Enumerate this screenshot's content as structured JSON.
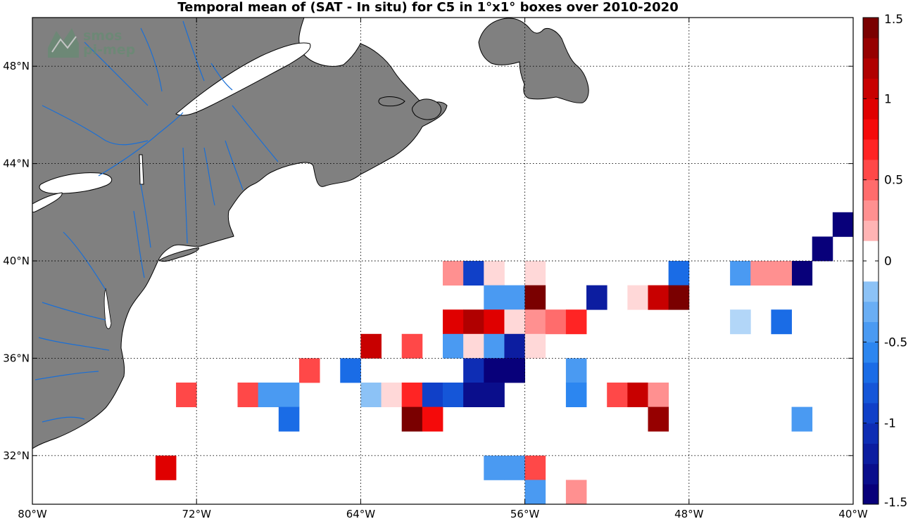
{
  "title": "Temporal mean of (SAT - In situ) for C5 in 1°x1° boxes over 2010-2020",
  "watermark": {
    "line1": "smos",
    "line2": "pi-mep"
  },
  "map": {
    "lon_range": [
      -80,
      -40
    ],
    "lat_range": [
      30,
      50
    ],
    "land_color": "#808080",
    "river_color": "#1a6fd6",
    "grid": "dotted",
    "lon_ticks": [
      {
        "value": -80,
        "label": "80°W"
      },
      {
        "value": -72,
        "label": "72°W"
      },
      {
        "value": -64,
        "label": "64°W"
      },
      {
        "value": -56,
        "label": "56°W"
      },
      {
        "value": -48,
        "label": "48°W"
      },
      {
        "value": -40,
        "label": "40°W"
      }
    ],
    "lat_ticks": [
      {
        "value": 32,
        "label": "32°N"
      },
      {
        "value": 36,
        "label": "36°N"
      },
      {
        "value": 40,
        "label": "40°N"
      },
      {
        "value": 44,
        "label": "44°N"
      },
      {
        "value": 48,
        "label": "48°N"
      }
    ]
  },
  "colorbar": {
    "range": [
      -1.5,
      1.5
    ],
    "levels": 24,
    "ticks": [
      {
        "value": 1.5,
        "label": "1.5"
      },
      {
        "value": 1,
        "label": "1"
      },
      {
        "value": 0.5,
        "label": "0.5"
      },
      {
        "value": 0,
        "label": "0"
      },
      {
        "value": -0.5,
        "label": "-0.5"
      },
      {
        "value": -1,
        "label": "-1"
      },
      {
        "value": -1.5,
        "label": "-1.5"
      }
    ]
  },
  "boxes": [
    {
      "lon": -41,
      "lat": 41,
      "v": -1.4
    },
    {
      "lon": -42,
      "lat": 40,
      "v": -1.4
    },
    {
      "lon": -43,
      "lat": 39,
      "v": -1.4
    },
    {
      "lon": -49,
      "lat": 39,
      "v": -0.75
    },
    {
      "lon": -46,
      "lat": 39,
      "v": -0.4
    },
    {
      "lon": -45,
      "lat": 39,
      "v": 0.35
    },
    {
      "lon": -44,
      "lat": 39,
      "v": 0.25
    },
    {
      "lon": -51,
      "lat": 38,
      "v": 0.12
    },
    {
      "lon": -50,
      "lat": 38,
      "v": 1.1
    },
    {
      "lon": -49,
      "lat": 38,
      "v": 1.4
    },
    {
      "lon": -53,
      "lat": 38,
      "v": -1.25
    },
    {
      "lon": -60,
      "lat": 39,
      "v": 0.35
    },
    {
      "lon": -59,
      "lat": 39,
      "v": -1.0
    },
    {
      "lon": -58,
      "lat": 39,
      "v": 0.12
    },
    {
      "lon": -56,
      "lat": 39,
      "v": 0.12
    },
    {
      "lon": -58,
      "lat": 38,
      "v": -0.4
    },
    {
      "lon": -57,
      "lat": 38,
      "v": -0.4
    },
    {
      "lon": -56,
      "lat": 38,
      "v": 1.5
    },
    {
      "lon": -60,
      "lat": 37,
      "v": 0.9
    },
    {
      "lon": -59,
      "lat": 37,
      "v": 1.15
    },
    {
      "lon": -58,
      "lat": 37,
      "v": 0.9
    },
    {
      "lon": -57,
      "lat": 37,
      "v": 0.12
    },
    {
      "lon": -56,
      "lat": 37,
      "v": 0.25
    },
    {
      "lon": -55,
      "lat": 37,
      "v": 0.4
    },
    {
      "lon": -54,
      "lat": 37,
      "v": 0.7
    },
    {
      "lon": -46,
      "lat": 37,
      "v": -0.1
    },
    {
      "lon": -44,
      "lat": 37,
      "v": -0.75
    },
    {
      "lon": -64,
      "lat": 36,
      "v": 1.0
    },
    {
      "lon": -62,
      "lat": 36,
      "v": 0.6
    },
    {
      "lon": -60,
      "lat": 36,
      "v": -0.45
    },
    {
      "lon": -59,
      "lat": 36,
      "v": 0.12
    },
    {
      "lon": -58,
      "lat": 36,
      "v": -0.4
    },
    {
      "lon": -57,
      "lat": 36,
      "v": -1.25
    },
    {
      "lon": -56,
      "lat": 36,
      "v": 0.12
    },
    {
      "lon": -67,
      "lat": 35,
      "v": 0.5
    },
    {
      "lon": -65,
      "lat": 35,
      "v": -0.7
    },
    {
      "lon": -59,
      "lat": 35,
      "v": -1.1
    },
    {
      "lon": -58,
      "lat": 35,
      "v": -1.4
    },
    {
      "lon": -57,
      "lat": 35,
      "v": -1.4
    },
    {
      "lon": -54,
      "lat": 35,
      "v": -0.45
    },
    {
      "lon": -73,
      "lat": 34,
      "v": 0.5
    },
    {
      "lon": -70,
      "lat": 34,
      "v": 0.5
    },
    {
      "lon": -69,
      "lat": 34,
      "v": -0.4
    },
    {
      "lon": -68,
      "lat": 34,
      "v": -0.4
    },
    {
      "lon": -64,
      "lat": 34,
      "v": -0.25
    },
    {
      "lon": -63,
      "lat": 34,
      "v": 0.12
    },
    {
      "lon": -62,
      "lat": 34,
      "v": 0.65
    },
    {
      "lon": -61,
      "lat": 34,
      "v": -0.9
    },
    {
      "lon": -60,
      "lat": 34,
      "v": -0.8
    },
    {
      "lon": -59,
      "lat": 34,
      "v": -1.35
    },
    {
      "lon": -58,
      "lat": 34,
      "v": -1.35
    },
    {
      "lon": -54,
      "lat": 34,
      "v": -0.55
    },
    {
      "lon": -52,
      "lat": 34,
      "v": 0.5
    },
    {
      "lon": -51,
      "lat": 34,
      "v": 1.0
    },
    {
      "lon": -50,
      "lat": 34,
      "v": 0.3
    },
    {
      "lon": -68,
      "lat": 33,
      "v": -0.75
    },
    {
      "lon": -62,
      "lat": 33,
      "v": 1.5
    },
    {
      "lon": -61,
      "lat": 33,
      "v": 0.75
    },
    {
      "lon": -50,
      "lat": 33,
      "v": 1.25
    },
    {
      "lon": -43,
      "lat": 33,
      "v": -0.5
    },
    {
      "lon": -74,
      "lat": 31,
      "v": 0.95
    },
    {
      "lon": -58,
      "lat": 31,
      "v": -0.5
    },
    {
      "lon": -57,
      "lat": 31,
      "v": -0.4
    },
    {
      "lon": -56,
      "lat": 31,
      "v": 0.5
    },
    {
      "lon": -56,
      "lat": 30,
      "v": -0.4
    },
    {
      "lon": -54,
      "lat": 30,
      "v": 0.3
    }
  ]
}
